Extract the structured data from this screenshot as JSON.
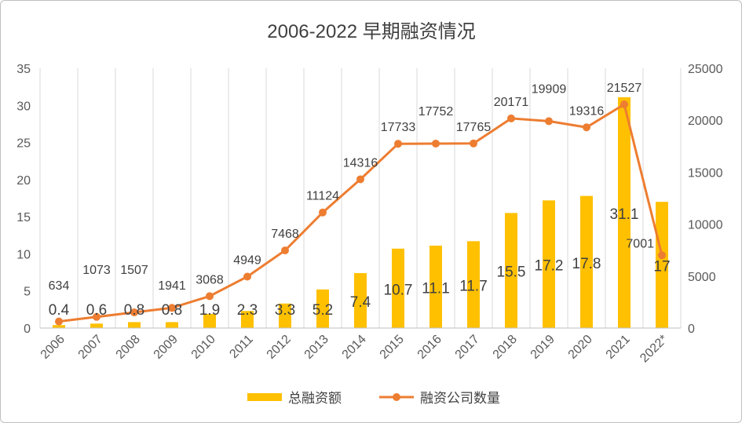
{
  "chart_data": {
    "type": "bar+line",
    "title": "2006-2022 早期融资情况",
    "categories": [
      "2006",
      "2007",
      "2008",
      "2009",
      "2010",
      "2011",
      "2012",
      "2013",
      "2014",
      "2015",
      "2016",
      "2017",
      "2018",
      "2019",
      "2020",
      "2021",
      "2022*"
    ],
    "series": [
      {
        "name": "总融资额",
        "type": "bar",
        "axis": "left",
        "color": "#FFC000",
        "values": [
          0.4,
          0.6,
          0.8,
          0.8,
          1.9,
          2.3,
          3.3,
          5.2,
          7.4,
          10.7,
          11.1,
          11.7,
          15.5,
          17.2,
          17.8,
          31.1,
          17
        ]
      },
      {
        "name": "融资公司数量",
        "type": "line",
        "axis": "right",
        "color": "#ED7D31",
        "values": [
          634,
          1073,
          1507,
          1941,
          3068,
          4949,
          7468,
          11124,
          14316,
          17733,
          17752,
          17765,
          20171,
          19909,
          19316,
          21527,
          7001
        ]
      }
    ],
    "y_left": {
      "range": [
        0,
        35
      ],
      "ticks": [
        0,
        5,
        10,
        15,
        20,
        25,
        30,
        35
      ]
    },
    "y_right": {
      "range": [
        0,
        25000
      ],
      "ticks": [
        0,
        5000,
        10000,
        15000,
        20000,
        25000
      ]
    },
    "grid": "vertical",
    "legend": "bottom"
  }
}
